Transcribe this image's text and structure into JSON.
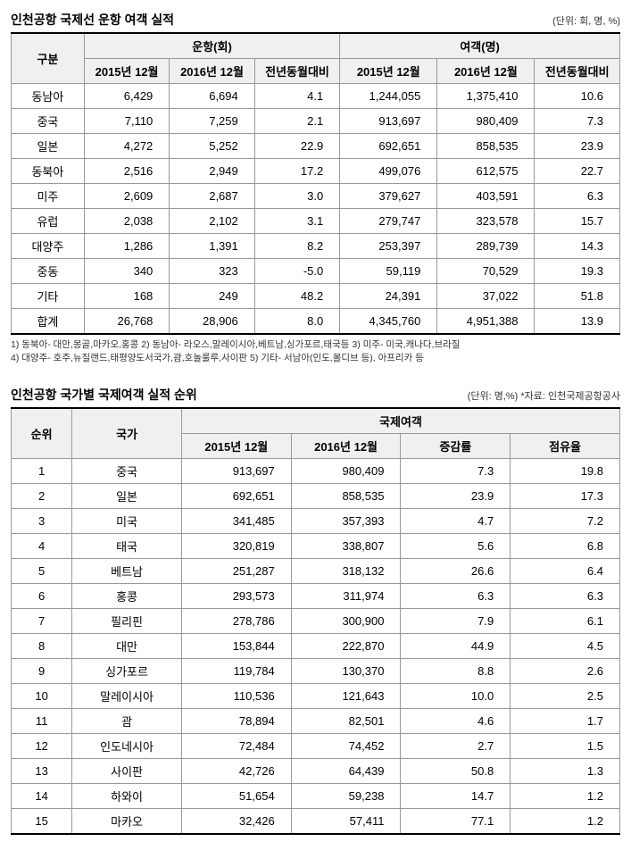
{
  "table1": {
    "title": "인천공항 국제선 운항 여객 실적",
    "unit": "(단위: 회, 명, %)",
    "headers": {
      "category": "구분",
      "flights": "운항(회)",
      "passengers": "여객(명)",
      "col_2015": "2015년 12월",
      "col_2016": "2016년 12월",
      "col_yoy": "전년동월대비"
    },
    "rows": [
      {
        "region": "동남아",
        "f2015": "6,429",
        "f2016": "6,694",
        "fyoy": "4.1",
        "p2015": "1,244,055",
        "p2016": "1,375,410",
        "pyoy": "10.6"
      },
      {
        "region": "중국",
        "f2015": "7,110",
        "f2016": "7,259",
        "fyoy": "2.1",
        "p2015": "913,697",
        "p2016": "980,409",
        "pyoy": "7.3"
      },
      {
        "region": "일본",
        "f2015": "4,272",
        "f2016": "5,252",
        "fyoy": "22.9",
        "p2015": "692,651",
        "p2016": "858,535",
        "pyoy": "23.9"
      },
      {
        "region": "동북아",
        "f2015": "2,516",
        "f2016": "2,949",
        "fyoy": "17.2",
        "p2015": "499,076",
        "p2016": "612,575",
        "pyoy": "22.7"
      },
      {
        "region": "미주",
        "f2015": "2,609",
        "f2016": "2,687",
        "fyoy": "3.0",
        "p2015": "379,627",
        "p2016": "403,591",
        "pyoy": "6.3"
      },
      {
        "region": "유럽",
        "f2015": "2,038",
        "f2016": "2,102",
        "fyoy": "3.1",
        "p2015": "279,747",
        "p2016": "323,578",
        "pyoy": "15.7"
      },
      {
        "region": "대양주",
        "f2015": "1,286",
        "f2016": "1,391",
        "fyoy": "8.2",
        "p2015": "253,397",
        "p2016": "289,739",
        "pyoy": "14.3"
      },
      {
        "region": "중동",
        "f2015": "340",
        "f2016": "323",
        "fyoy": "-5.0",
        "p2015": "59,119",
        "p2016": "70,529",
        "pyoy": "19.3"
      },
      {
        "region": "기타",
        "f2015": "168",
        "f2016": "249",
        "fyoy": "48.2",
        "p2015": "24,391",
        "p2016": "37,022",
        "pyoy": "51.8"
      },
      {
        "region": "합계",
        "f2015": "26,768",
        "f2016": "28,906",
        "fyoy": "8.0",
        "p2015": "4,345,760",
        "p2016": "4,951,388",
        "pyoy": "13.9"
      }
    ],
    "footnote_line1": "1) 동북아- 대만,몽골,마카오,홍콩   2) 동남아- 라오스,말레이시아,베트남,싱가포르,태국등   3) 미주- 미국,캐나다,브라질",
    "footnote_line2": "4) 대양주- 호주,뉴질랜드,태평양도서국가,괌,호놀룰루,사이판   5) 기타- 서남아(인도,몰디브 등), 아프리카 등"
  },
  "table2": {
    "title": "인천공항 국가별 국제여객 실적 순위",
    "unit": "(단위: 명,%) *자료: 인천국제공항공사",
    "headers": {
      "rank": "순위",
      "country": "국가",
      "intl_pax": "국제여객",
      "col_2015": "2015년 12월",
      "col_2016": "2016년 12월",
      "col_change": "증감률",
      "col_share": "점유율"
    },
    "rows": [
      {
        "rank": "1",
        "country": "중국",
        "p2015": "913,697",
        "p2016": "980,409",
        "change": "7.3",
        "share": "19.8"
      },
      {
        "rank": "2",
        "country": "일본",
        "p2015": "692,651",
        "p2016": "858,535",
        "change": "23.9",
        "share": "17.3"
      },
      {
        "rank": "3",
        "country": "미국",
        "p2015": "341,485",
        "p2016": "357,393",
        "change": "4.7",
        "share": "7.2"
      },
      {
        "rank": "4",
        "country": "태국",
        "p2015": "320,819",
        "p2016": "338,807",
        "change": "5.6",
        "share": "6.8"
      },
      {
        "rank": "5",
        "country": "베트남",
        "p2015": "251,287",
        "p2016": "318,132",
        "change": "26.6",
        "share": "6.4"
      },
      {
        "rank": "6",
        "country": "홍콩",
        "p2015": "293,573",
        "p2016": "311,974",
        "change": "6.3",
        "share": "6.3"
      },
      {
        "rank": "7",
        "country": "필리핀",
        "p2015": "278,786",
        "p2016": "300,900",
        "change": "7.9",
        "share": "6.1"
      },
      {
        "rank": "8",
        "country": "대만",
        "p2015": "153,844",
        "p2016": "222,870",
        "change": "44.9",
        "share": "4.5"
      },
      {
        "rank": "9",
        "country": "싱가포르",
        "p2015": "119,784",
        "p2016": "130,370",
        "change": "8.8",
        "share": "2.6"
      },
      {
        "rank": "10",
        "country": "말레이시아",
        "p2015": "110,536",
        "p2016": "121,643",
        "change": "10.0",
        "share": "2.5"
      },
      {
        "rank": "11",
        "country": "괌",
        "p2015": "78,894",
        "p2016": "82,501",
        "change": "4.6",
        "share": "1.7"
      },
      {
        "rank": "12",
        "country": "인도네시아",
        "p2015": "72,484",
        "p2016": "74,452",
        "change": "2.7",
        "share": "1.5"
      },
      {
        "rank": "13",
        "country": "사이판",
        "p2015": "42,726",
        "p2016": "64,439",
        "change": "50.8",
        "share": "1.3"
      },
      {
        "rank": "14",
        "country": "하와이",
        "p2015": "51,654",
        "p2016": "59,238",
        "change": "14.7",
        "share": "1.2"
      },
      {
        "rank": "15",
        "country": "마카오",
        "p2015": "32,426",
        "p2016": "57,411",
        "change": "77.1",
        "share": "1.2"
      }
    ]
  }
}
